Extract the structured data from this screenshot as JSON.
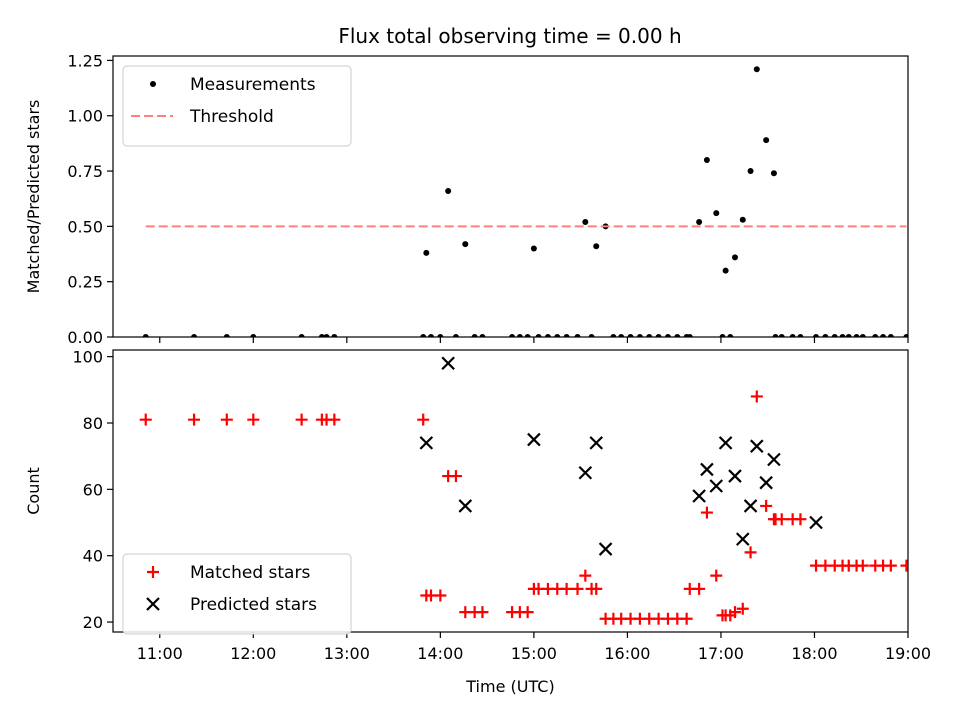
{
  "figure": {
    "title": "Flux total observing time = 0.00 h"
  },
  "chart_data": [
    {
      "type": "scatter",
      "panel": "top",
      "title": "Flux total observing time = 0.00 h",
      "xlabel": "",
      "ylabel": "Matched/Predicted stars",
      "xlim": [
        "10:30",
        "19:00"
      ],
      "ylim": [
        0,
        1.27
      ],
      "yticks": [
        "0.00",
        "0.25",
        "0.50",
        "0.75",
        "1.00",
        "1.25"
      ],
      "legend": "top-left",
      "series": [
        {
          "name": "Measurements",
          "marker": "dot",
          "color": "#000000",
          "points": [
            [
              "10:51",
              0
            ],
            [
              "11:22",
              0
            ],
            [
              "11:43",
              0
            ],
            [
              "12:00",
              0
            ],
            [
              "12:31",
              0
            ],
            [
              "12:44",
              0
            ],
            [
              "12:47",
              0
            ],
            [
              "12:52",
              0
            ],
            [
              "13:49",
              0
            ],
            [
              "13:51",
              0.38
            ],
            [
              "13:54",
              0
            ],
            [
              "14:00",
              0
            ],
            [
              "14:05",
              0.66
            ],
            [
              "14:10",
              0
            ],
            [
              "14:16",
              0.42
            ],
            [
              "14:22",
              0
            ],
            [
              "14:27",
              0
            ],
            [
              "14:46",
              0
            ],
            [
              "14:51",
              0
            ],
            [
              "14:56",
              0
            ],
            [
              "15:00",
              0.4
            ],
            [
              "15:03",
              0
            ],
            [
              "15:09",
              0
            ],
            [
              "15:15",
              0
            ],
            [
              "15:21",
              0
            ],
            [
              "15:28",
              0
            ],
            [
              "15:33",
              0.52
            ],
            [
              "15:37",
              0
            ],
            [
              "15:40",
              0.41
            ],
            [
              "15:46",
              0.5
            ],
            [
              "15:51",
              0
            ],
            [
              "15:56",
              0
            ],
            [
              "16:02",
              0
            ],
            [
              "16:08",
              0
            ],
            [
              "16:14",
              0
            ],
            [
              "16:20",
              0
            ],
            [
              "16:26",
              0
            ],
            [
              "16:32",
              0
            ],
            [
              "16:38",
              0
            ],
            [
              "16:40",
              0
            ],
            [
              "16:46",
              0.52
            ],
            [
              "16:51",
              0.8
            ],
            [
              "16:57",
              0.56
            ],
            [
              "17:01",
              0
            ],
            [
              "17:03",
              0.3
            ],
            [
              "17:06",
              0
            ],
            [
              "17:09",
              0.36
            ],
            [
              "17:14",
              0.53
            ],
            [
              "17:19",
              0.75
            ],
            [
              "17:23",
              1.21
            ],
            [
              "17:29",
              0.89
            ],
            [
              "17:34",
              0.74
            ],
            [
              "17:35",
              0
            ],
            [
              "17:39",
              0
            ],
            [
              "17:46",
              0
            ],
            [
              "17:51",
              0
            ],
            [
              "18:01",
              0
            ],
            [
              "18:07",
              0
            ],
            [
              "18:13",
              0
            ],
            [
              "18:18",
              0
            ],
            [
              "18:22",
              0
            ],
            [
              "18:27",
              0
            ],
            [
              "18:31",
              0
            ],
            [
              "18:39",
              0
            ],
            [
              "18:44",
              0
            ],
            [
              "18:49",
              0
            ],
            [
              "18:59",
              0
            ]
          ]
        },
        {
          "name": "Threshold",
          "style": "dashed",
          "color": "#ff7f7f",
          "points": [
            [
              "10:51",
              0.5
            ],
            [
              "18:59",
              0.5
            ]
          ]
        }
      ]
    },
    {
      "type": "scatter",
      "panel": "bottom",
      "xlabel": "Time (UTC)",
      "ylabel": "Count",
      "xlim": [
        "10:30",
        "19:00"
      ],
      "ylim": [
        17,
        102
      ],
      "xticks": [
        "11:00",
        "12:00",
        "13:00",
        "14:00",
        "15:00",
        "16:00",
        "17:00",
        "18:00",
        "19:00"
      ],
      "yticks": [
        "20",
        "40",
        "60",
        "80",
        "100"
      ],
      "legend": "lower-left",
      "series": [
        {
          "name": "Matched stars",
          "marker": "plus",
          "color": "#ff0000",
          "points": [
            [
              "10:51",
              81
            ],
            [
              "11:22",
              81
            ],
            [
              "11:43",
              81
            ],
            [
              "12:00",
              81
            ],
            [
              "12:31",
              81
            ],
            [
              "12:44",
              81
            ],
            [
              "12:47",
              81
            ],
            [
              "12:52",
              81
            ],
            [
              "13:49",
              81
            ],
            [
              "13:51",
              28
            ],
            [
              "13:54",
              28
            ],
            [
              "14:00",
              28
            ],
            [
              "14:05",
              64
            ],
            [
              "14:10",
              64
            ],
            [
              "14:16",
              23
            ],
            [
              "14:22",
              23
            ],
            [
              "14:27",
              23
            ],
            [
              "14:46",
              23
            ],
            [
              "14:51",
              23
            ],
            [
              "14:56",
              23
            ],
            [
              "15:00",
              30
            ],
            [
              "15:03",
              30
            ],
            [
              "15:09",
              30
            ],
            [
              "15:15",
              30
            ],
            [
              "15:21",
              30
            ],
            [
              "15:28",
              30
            ],
            [
              "15:33",
              34
            ],
            [
              "15:37",
              30
            ],
            [
              "15:40",
              30
            ],
            [
              "15:46",
              21
            ],
            [
              "15:51",
              21
            ],
            [
              "15:56",
              21
            ],
            [
              "16:02",
              21
            ],
            [
              "16:08",
              21
            ],
            [
              "16:14",
              21
            ],
            [
              "16:20",
              21
            ],
            [
              "16:26",
              21
            ],
            [
              "16:32",
              21
            ],
            [
              "16:38",
              21
            ],
            [
              "16:40",
              30
            ],
            [
              "16:46",
              30
            ],
            [
              "16:51",
              53
            ],
            [
              "16:57",
              34
            ],
            [
              "17:01",
              22
            ],
            [
              "17:03",
              22
            ],
            [
              "17:06",
              22
            ],
            [
              "17:09",
              23
            ],
            [
              "17:14",
              24
            ],
            [
              "17:19",
              41
            ],
            [
              "17:23",
              88
            ],
            [
              "17:29",
              55
            ],
            [
              "17:34",
              51
            ],
            [
              "17:35",
              51
            ],
            [
              "17:39",
              51
            ],
            [
              "17:46",
              51
            ],
            [
              "17:51",
              51
            ],
            [
              "18:01",
              37
            ],
            [
              "18:07",
              37
            ],
            [
              "18:13",
              37
            ],
            [
              "18:18",
              37
            ],
            [
              "18:22",
              37
            ],
            [
              "18:27",
              37
            ],
            [
              "18:31",
              37
            ],
            [
              "18:39",
              37
            ],
            [
              "18:44",
              37
            ],
            [
              "18:49",
              37
            ],
            [
              "18:59",
              37
            ]
          ]
        },
        {
          "name": "Predicted stars",
          "marker": "x",
          "color": "#000000",
          "points": [
            [
              "13:51",
              74
            ],
            [
              "14:05",
              98
            ],
            [
              "14:16",
              55
            ],
            [
              "15:00",
              75
            ],
            [
              "15:33",
              65
            ],
            [
              "15:40",
              74
            ],
            [
              "15:46",
              42
            ],
            [
              "16:46",
              58
            ],
            [
              "16:51",
              66
            ],
            [
              "16:57",
              61
            ],
            [
              "17:03",
              74
            ],
            [
              "17:09",
              64
            ],
            [
              "17:14",
              45
            ],
            [
              "17:19",
              55
            ],
            [
              "17:23",
              73
            ],
            [
              "17:29",
              62
            ],
            [
              "17:34",
              69
            ],
            [
              "18:01",
              50
            ]
          ]
        }
      ]
    }
  ]
}
